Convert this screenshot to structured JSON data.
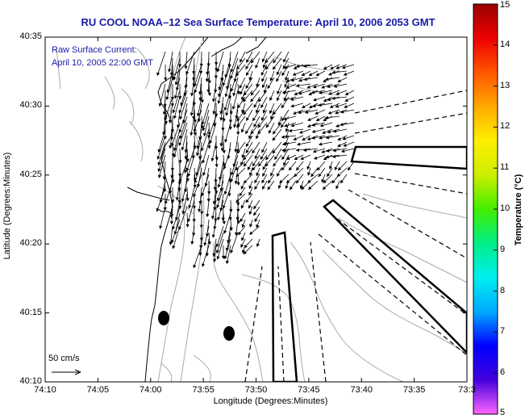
{
  "title": "RU COOL  NOAA–12  Sea Surface Temperature:  April 10, 2006 2053 GMT",
  "overlay": {
    "line1": "Raw Surface Current:",
    "line2": "April 10, 2005 22:00 GMT"
  },
  "axes": {
    "xlabel": "Longitude (Degrees:Minutes)",
    "ylabel": "Latitude (Degrees:Minutes)",
    "xticks": [
      "74:10",
      "74:05",
      "74:00",
      "73:55",
      "73:50",
      "73:45",
      "73:40",
      "73:35",
      "73:3"
    ],
    "yticks": [
      "40:35",
      "40:30",
      "40:25",
      "40:20",
      "40:15",
      "40:10"
    ]
  },
  "colorbar": {
    "label": "Temperature (°C)",
    "ticks": [
      "15",
      "14",
      "13",
      "12",
      "11",
      "10",
      "9",
      "8",
      "7",
      "6",
      "5"
    ],
    "colors": [
      "#ff66ff",
      "#4400dd",
      "#0000ff",
      "#00aaff",
      "#00eeee",
      "#00ee88",
      "#44ee00",
      "#ccee00",
      "#ffee00",
      "#ffaa00",
      "#ff5500",
      "#ee0000",
      "#990000"
    ]
  },
  "scale": {
    "label": "50 cm/s"
  },
  "colors": {
    "title": "#1a1aa6",
    "contour": "#aaaaaa",
    "vector": "#000000"
  },
  "icons": {
    "land_markers": "black-ellipse",
    "current_vectors": "arrow"
  }
}
